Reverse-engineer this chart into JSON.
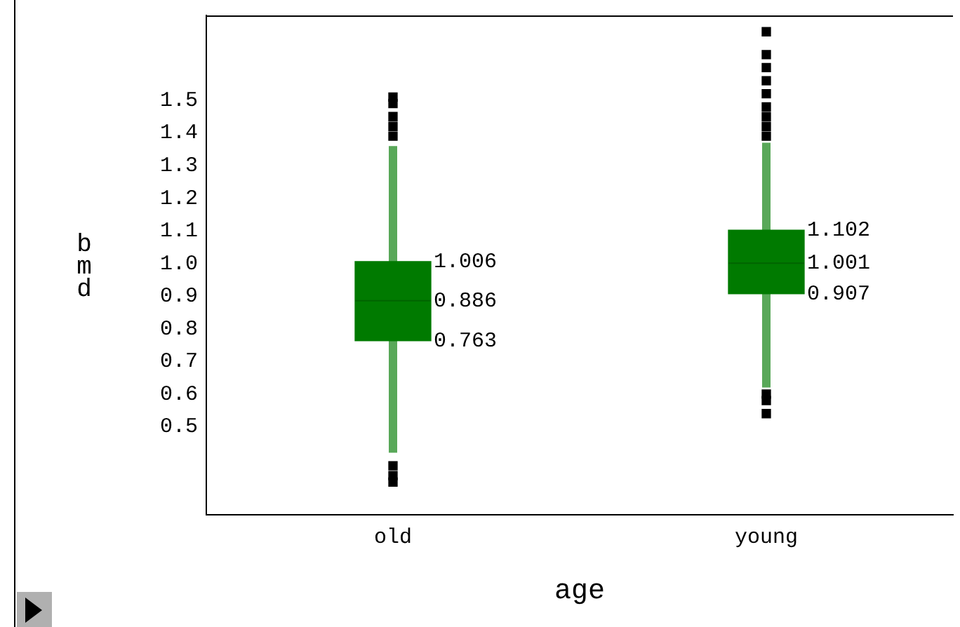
{
  "chart_data": {
    "type": "box",
    "xlabel": "age",
    "ylabel": "bmd",
    "categories": [
      "old",
      "young"
    ],
    "ylim": [
      0.23,
      1.76
    ],
    "yticks": [
      0.5,
      0.6,
      0.7,
      0.8,
      0.9,
      {
        "value": 1,
        "label": "1.0"
      },
      1.1,
      1.2,
      1.3,
      1.4,
      1.5
    ],
    "annotations": [
      {
        "text": "1.006",
        "x": "old",
        "y": 1.006
      },
      {
        "text": "0.886",
        "x": "old",
        "y": 0.886
      },
      {
        "text": "0.763",
        "x": "old",
        "y": 0.763
      },
      {
        "text": "1.102",
        "x": "young",
        "y": 1.102
      },
      {
        "text": "1.001",
        "x": "young",
        "y": 1.001
      },
      {
        "text": "0.907",
        "x": "young",
        "y": 0.907
      }
    ],
    "boxes": [
      {
        "low": 0.42,
        "q1": 0.763,
        "median": 0.886,
        "q3": 1.006,
        "high": 1.36,
        "outliers": [
          1.51,
          1.49,
          1.45,
          1.42,
          1.39,
          0.38,
          0.35,
          0.33
        ]
      },
      {
        "low": 0.62,
        "q1": 0.907,
        "median": 1.001,
        "q3": 1.102,
        "high": 1.37,
        "outliers": [
          1.71,
          1.64,
          1.6,
          1.56,
          1.52,
          1.48,
          1.45,
          1.42,
          1.39,
          0.6,
          0.58,
          0.54
        ]
      }
    ],
    "color": "#007a00",
    "marker": "square",
    "grid": false,
    "legend": false
  }
}
